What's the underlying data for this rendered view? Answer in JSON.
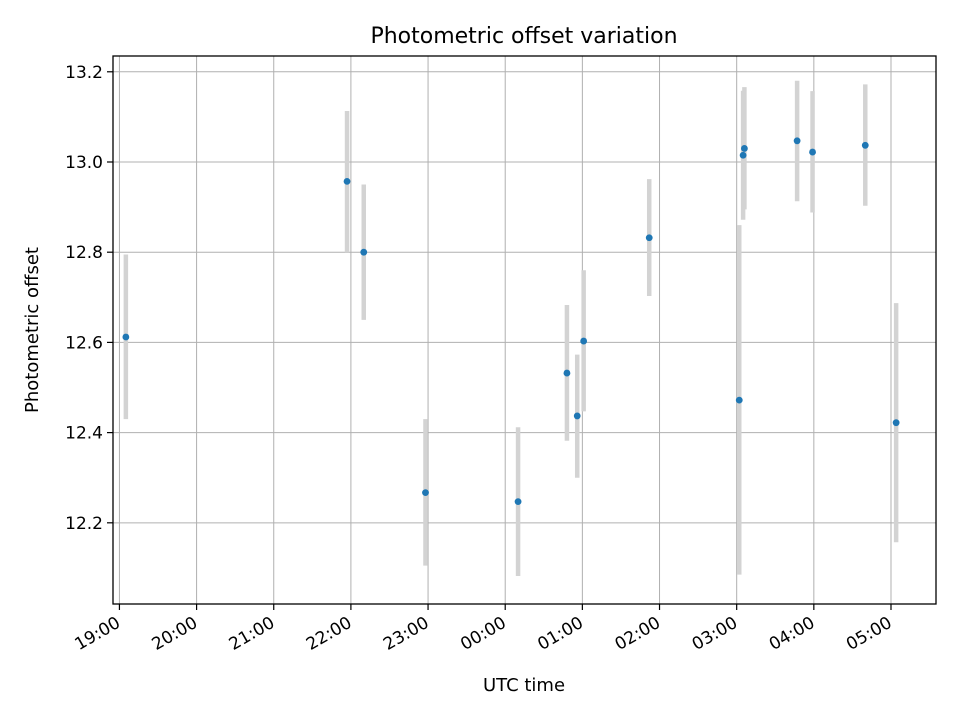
{
  "chart_data": {
    "type": "scatter",
    "title": "Photometric offset variation",
    "xlabel": "UTC time",
    "ylabel": "Photometric offset",
    "x_axis_kind": "time",
    "xlim": [
      "18:55",
      "05:35"
    ],
    "ylim": [
      12.02,
      13.235
    ],
    "x_ticks": [
      "19:00",
      "20:00",
      "21:00",
      "22:00",
      "23:00",
      "00:00",
      "01:00",
      "02:00",
      "03:00",
      "04:00",
      "05:00"
    ],
    "y_ticks": [
      "12.2",
      "12.4",
      "12.6",
      "12.8",
      "13.0",
      "13.2"
    ],
    "grid": true,
    "point_color": "#1f77b4",
    "errorbar_color": "#d3d3d3",
    "points": [
      {
        "x": "19:05",
        "y": 12.612,
        "ylow": 12.43,
        "yhigh": 12.795
      },
      {
        "x": "21:57",
        "y": 12.957,
        "ylow": 12.8,
        "yhigh": 13.113
      },
      {
        "x": "22:10",
        "y": 12.8,
        "ylow": 12.65,
        "yhigh": 12.95
      },
      {
        "x": "22:58",
        "y": 12.267,
        "ylow": 12.105,
        "yhigh": 12.43
      },
      {
        "x": "00:10",
        "y": 12.247,
        "ylow": 12.082,
        "yhigh": 12.412
      },
      {
        "x": "00:48",
        "y": 12.532,
        "ylow": 12.382,
        "yhigh": 12.683
      },
      {
        "x": "00:56",
        "y": 12.437,
        "ylow": 12.3,
        "yhigh": 12.573
      },
      {
        "x": "01:01",
        "y": 12.603,
        "ylow": 12.447,
        "yhigh": 12.76
      },
      {
        "x": "01:52",
        "y": 12.832,
        "ylow": 12.703,
        "yhigh": 12.962
      },
      {
        "x": "03:02",
        "y": 12.472,
        "ylow": 12.085,
        "yhigh": 12.86
      },
      {
        "x": "03:05",
        "y": 13.015,
        "ylow": 12.872,
        "yhigh": 13.158
      },
      {
        "x": "03:06",
        "y": 13.03,
        "ylow": 12.895,
        "yhigh": 13.166
      },
      {
        "x": "03:47",
        "y": 13.047,
        "ylow": 12.913,
        "yhigh": 13.18
      },
      {
        "x": "03:59",
        "y": 13.022,
        "ylow": 12.888,
        "yhigh": 13.157
      },
      {
        "x": "04:40",
        "y": 13.037,
        "ylow": 12.903,
        "yhigh": 13.172
      },
      {
        "x": "05:04",
        "y": 12.422,
        "ylow": 12.157,
        "yhigh": 12.687
      }
    ]
  }
}
